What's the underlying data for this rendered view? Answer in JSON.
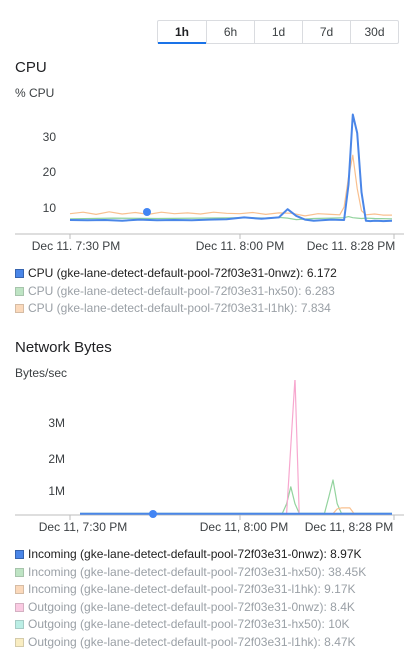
{
  "time_range": {
    "options": [
      "1h",
      "6h",
      "1d",
      "7d",
      "30d"
    ],
    "selected": "1h"
  },
  "cpu_chart": {
    "title": "CPU",
    "unit": "% CPU",
    "y_ticks": [
      "30",
      "20",
      "10"
    ],
    "x_ticks": [
      "Dec 11, 7:30 PM",
      "Dec 11, 8:00 PM",
      "Dec 11, 8:28 PM"
    ],
    "legend": [
      {
        "label": "CPU (gke-lane-detect-default-pool-72f03e31-0nwz): 6.172",
        "color": "#4a86e8",
        "dim": false
      },
      {
        "label": "CPU (gke-lane-detect-default-pool-72f03e31-hx50): 6.283",
        "color": "#93d39e",
        "dim": true
      },
      {
        "label": "CPU (gke-lane-detect-default-pool-72f03e31-l1hk): 7.834",
        "color": "#f9c08f",
        "dim": true
      }
    ]
  },
  "network_chart": {
    "title": "Network Bytes",
    "unit": "Bytes/sec",
    "y_ticks": [
      "3M",
      "2M",
      "1M"
    ],
    "x_ticks": [
      "Dec 11, 7:30 PM",
      "Dec 11, 8:00 PM",
      "Dec 11, 8:28 PM"
    ],
    "legend": [
      {
        "label": "Incoming (gke-lane-detect-default-pool-72f03e31-0nwz): 8.97K",
        "color": "#4a86e8",
        "dim": false
      },
      {
        "label": "Incoming (gke-lane-detect-default-pool-72f03e31-hx50): 38.45K",
        "color": "#93d39e",
        "dim": true
      },
      {
        "label": "Incoming (gke-lane-detect-default-pool-72f03e31-l1hk): 9.17K",
        "color": "#f9c08f",
        "dim": true
      },
      {
        "label": "Outgoing (gke-lane-detect-default-pool-72f03e31-0nwz): 8.4K",
        "color": "#f7a8cf",
        "dim": true
      },
      {
        "label": "Outgoing (gke-lane-detect-default-pool-72f03e31-hx50): 10K",
        "color": "#8fe3d4",
        "dim": true
      },
      {
        "label": "Outgoing (gke-lane-detect-default-pool-72f03e31-l1hk): 8.47K",
        "color": "#f6e29a",
        "dim": true
      }
    ]
  },
  "chart_data": [
    {
      "type": "line",
      "title": "CPU",
      "ylabel": "% CPU",
      "xlabel": "",
      "ylim": [
        0,
        40
      ],
      "x_range_minutes": [
        0,
        60
      ],
      "x_tick_labels": {
        "7": "Dec 11, 7:30 PM",
        "37": "Dec 11, 8:00 PM",
        "65": "Dec 11, 8:28 PM"
      },
      "grid": false,
      "series": [
        {
          "name": "CPU (gke-lane-detect-default-pool-72f03e31-0nwz)",
          "color": "#4a86e8",
          "x": [
            0,
            4,
            8,
            12,
            16,
            20,
            24,
            28,
            32,
            36,
            40,
            44,
            48,
            50,
            52,
            54,
            56,
            60,
            63,
            64,
            65,
            66,
            67,
            68,
            69,
            70,
            72,
            74
          ],
          "y": [
            6.5,
            6.4,
            6.5,
            6.3,
            6.6,
            6.4,
            6.5,
            6.4,
            6.6,
            6.7,
            7.2,
            6.8,
            7.2,
            9.4,
            7.6,
            6.6,
            6.3,
            6.6,
            6.5,
            16,
            35,
            30,
            14,
            6.3,
            6.2,
            6.3,
            6.2,
            6.3
          ]
        },
        {
          "name": "CPU (gke-lane-detect-default-pool-72f03e31-hx50)",
          "color": "#93d39e",
          "x": [
            0,
            10,
            20,
            30,
            40,
            45,
            48,
            50,
            52,
            56,
            60,
            63,
            64,
            65,
            66,
            67,
            68,
            70,
            74
          ],
          "y": [
            6.8,
            7.0,
            6.9,
            7.0,
            7.1,
            7.0,
            7.2,
            7.0,
            6.6,
            6.9,
            7.0,
            7.1,
            7.4,
            7.1,
            7.0,
            6.9,
            7.0,
            6.9,
            6.8
          ]
        },
        {
          "name": "CPU (gke-lane-detect-default-pool-72f03e31-l1hk)",
          "color": "#f9c08f",
          "x": [
            0,
            3,
            6,
            9,
            12,
            15,
            18,
            21,
            24,
            27,
            30,
            33,
            36,
            39,
            42,
            45,
            48,
            51,
            54,
            57,
            60,
            62,
            63,
            64,
            65,
            66,
            67,
            68,
            70,
            72,
            74
          ],
          "y": [
            8.2,
            8.6,
            8.0,
            8.7,
            8.1,
            8.5,
            8.0,
            8.6,
            8.2,
            8.4,
            8.1,
            8.6,
            8.3,
            8.2,
            8.5,
            8.0,
            8.4,
            8.3,
            7.6,
            8.2,
            8.0,
            7.9,
            10,
            18,
            24,
            15,
            9,
            7.9,
            8.1,
            7.8,
            7.8
          ]
        }
      ]
    },
    {
      "type": "line",
      "title": "Network Bytes",
      "ylabel": "Bytes/sec",
      "xlabel": "",
      "ylim": [
        0,
        4000000
      ],
      "x_range_minutes": [
        0,
        60
      ],
      "x_tick_labels": {
        "7": "Dec 11, 7:30 PM",
        "37": "Dec 11, 8:00 PM",
        "65": "Dec 11, 8:28 PM"
      },
      "grid": false,
      "series": [
        {
          "name": "Incoming (gke-lane-detect-default-pool-72f03e31-0nwz)",
          "color": "#4a86e8",
          "x": [
            0,
            74
          ],
          "y": [
            9000,
            9000
          ]
        },
        {
          "name": "Incoming (gke-lane-detect-default-pool-72f03e31-hx50)",
          "color": "#93d39e",
          "x": [
            0,
            48,
            49,
            50,
            51,
            52,
            55,
            58,
            59,
            60,
            61,
            62,
            74
          ],
          "y": [
            20000,
            20000,
            300000,
            800000,
            300000,
            20000,
            20000,
            20000,
            500000,
            1000000,
            300000,
            20000,
            20000
          ]
        },
        {
          "name": "Incoming (gke-lane-detect-default-pool-72f03e31-l1hk)",
          "color": "#f9c08f",
          "x": [
            0,
            60,
            61,
            62,
            64,
            65,
            74
          ],
          "y": [
            9000,
            9000,
            150000,
            180000,
            180000,
            9000,
            9000
          ]
        },
        {
          "name": "Outgoing (gke-lane-detect-default-pool-72f03e31-0nwz)",
          "color": "#f7a8cf",
          "x": [
            0,
            49,
            50,
            51,
            52,
            74
          ],
          "y": [
            8000,
            8000,
            2000000,
            4000000,
            8000,
            8000
          ]
        },
        {
          "name": "Outgoing (gke-lane-detect-default-pool-72f03e31-hx50)",
          "color": "#8fe3d4",
          "x": [
            0,
            74
          ],
          "y": [
            10000,
            10000
          ]
        },
        {
          "name": "Outgoing (gke-lane-detect-default-pool-72f03e31-l1hk)",
          "color": "#f6e29a",
          "x": [
            0,
            74
          ],
          "y": [
            8000,
            8000
          ]
        }
      ]
    }
  ]
}
